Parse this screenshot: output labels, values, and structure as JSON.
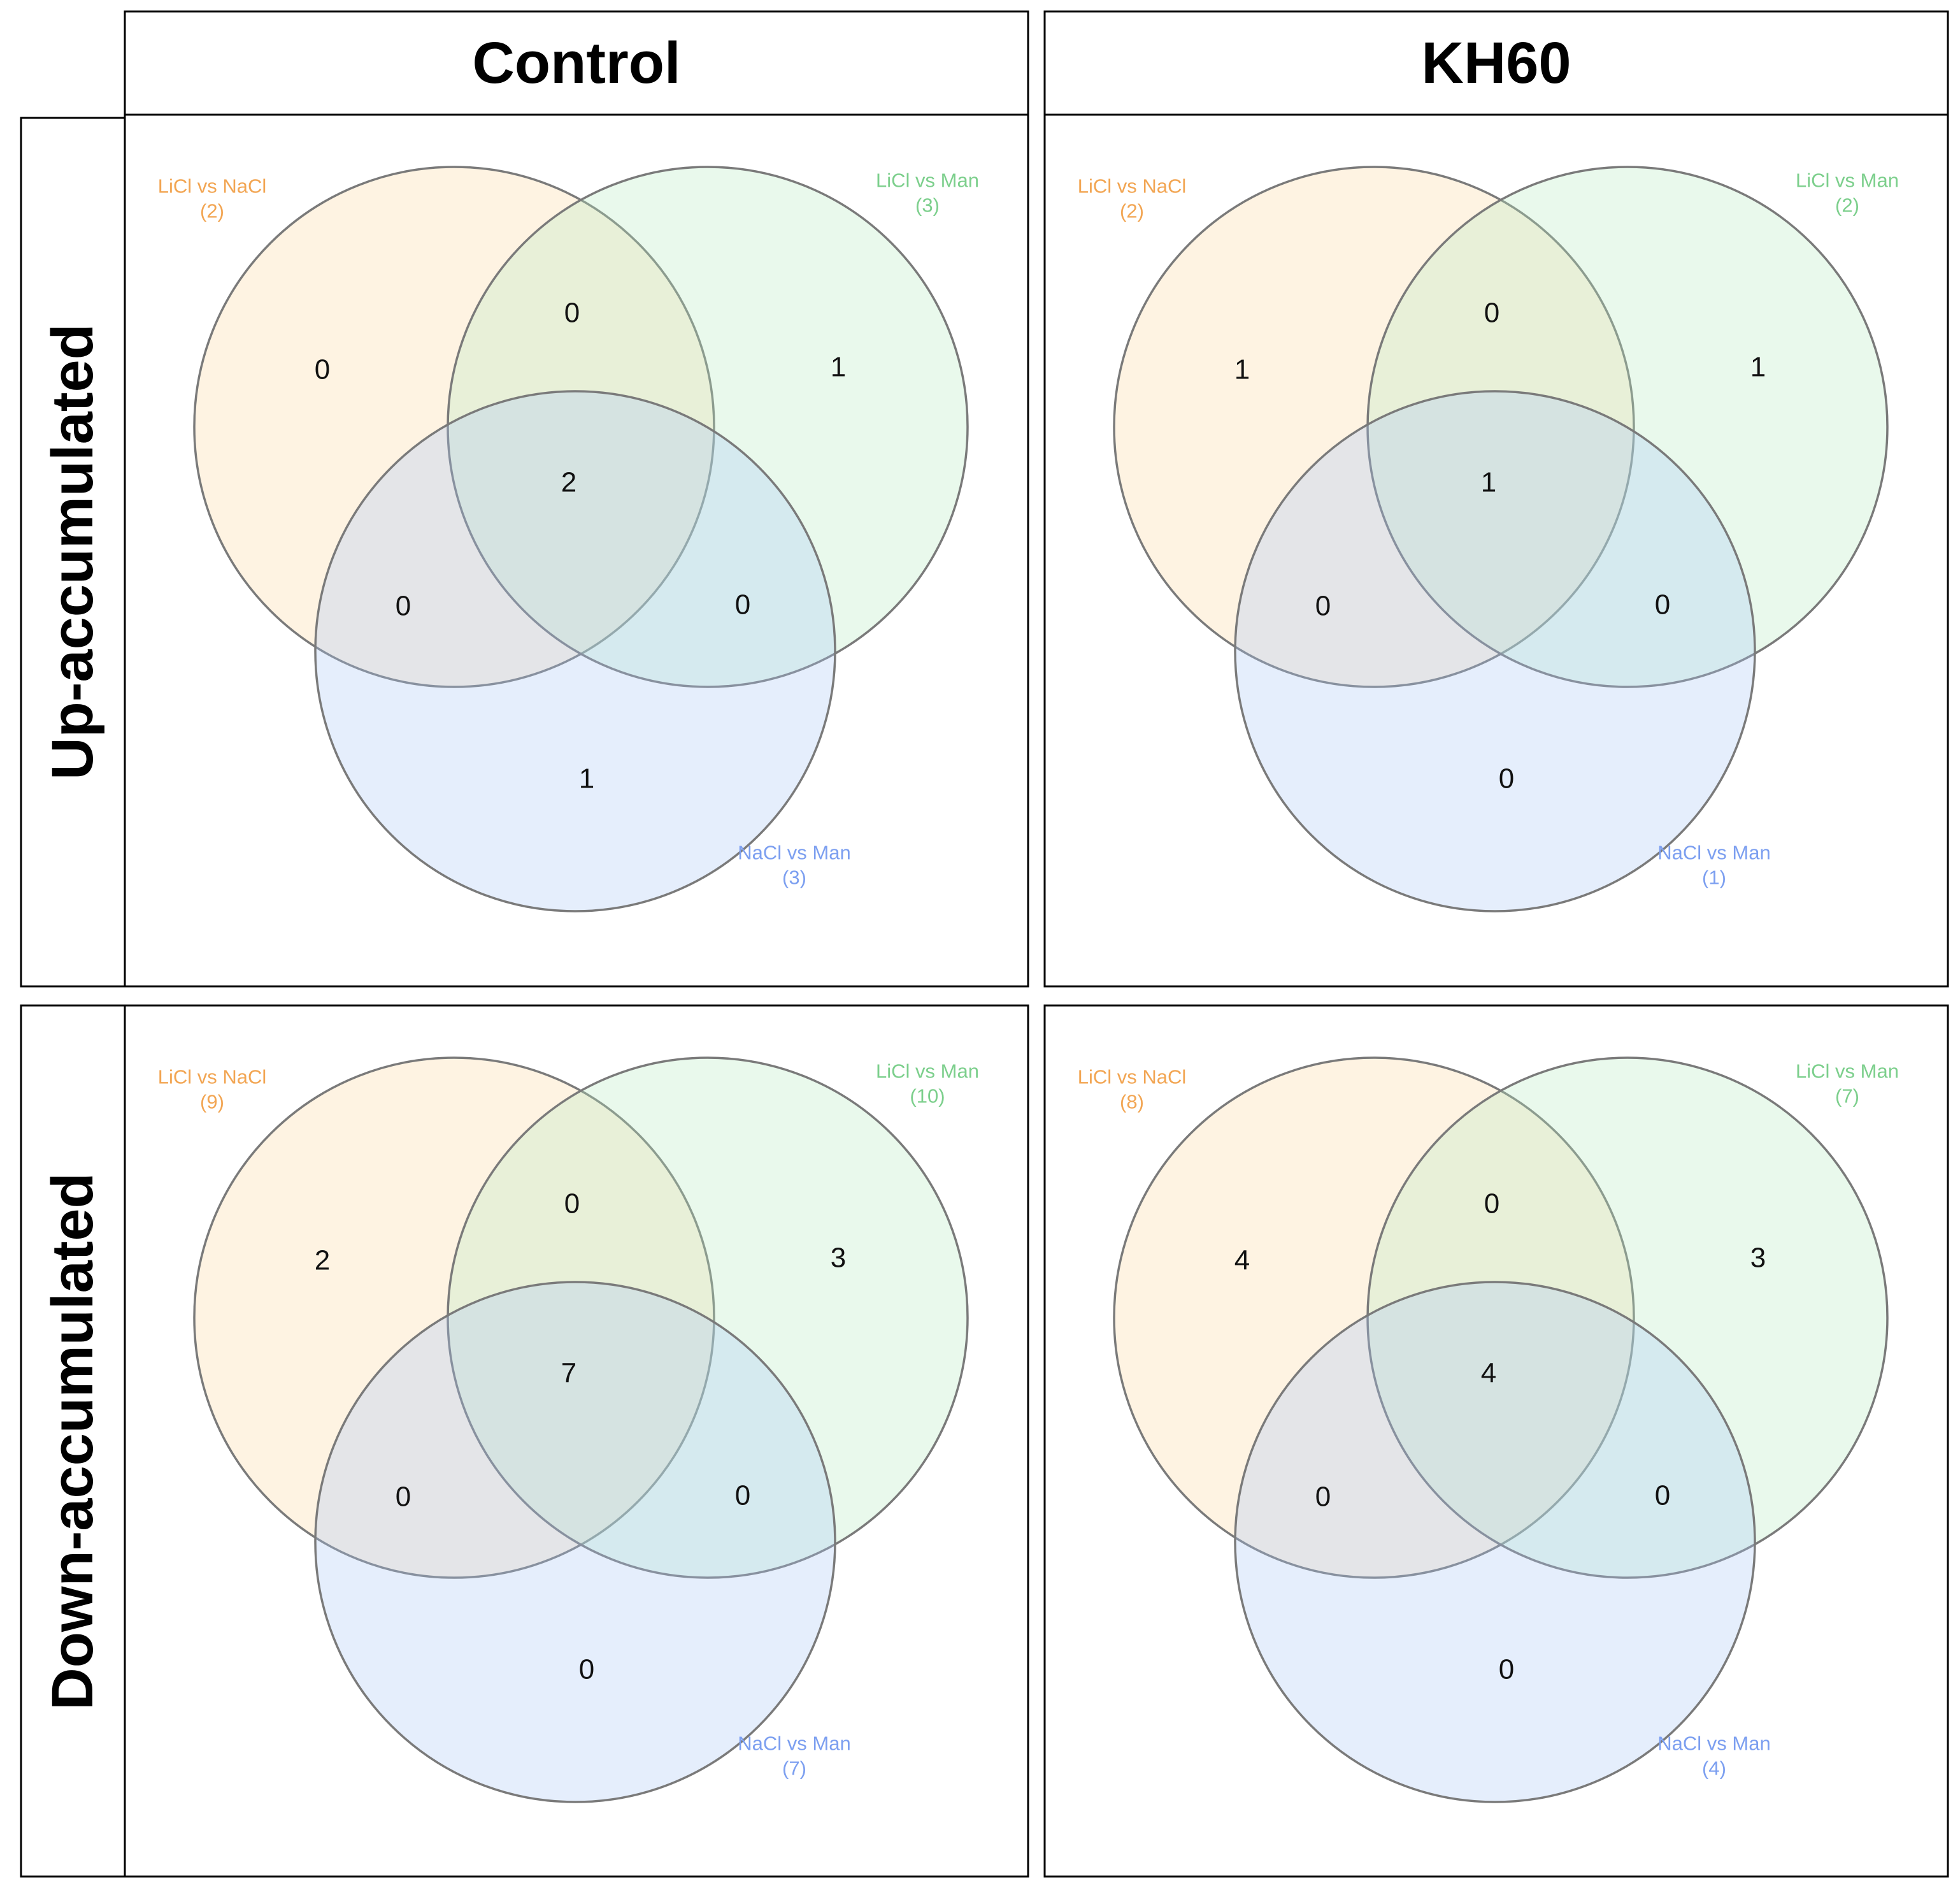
{
  "columns": [
    "Control",
    "KH60"
  ],
  "rows": [
    "Up-accumulated",
    "Down-accumulated"
  ],
  "colors": {
    "set_a": "#fbd7a0",
    "set_b": "#b7ecc0",
    "set_c": "#aac6f5",
    "label_a": "#f2a552",
    "label_b": "#7ccf8c",
    "label_c": "#7c9ff0",
    "frame": "#000000",
    "circle_stroke": "#7a7a7a"
  },
  "set_names": {
    "a": "LiCl vs NaCl",
    "b": "LiCl vs Man",
    "c": "NaCl vs Man"
  },
  "panels": [
    {
      "column": "Control",
      "row": "Up-accumulated",
      "set_totals": {
        "a": "(2)",
        "b": "(3)",
        "c": "(3)"
      },
      "regions": {
        "a_only": "0",
        "b_only": "1",
        "c_only": "1",
        "ab": "0",
        "ac": "0",
        "bc": "0",
        "abc": "2"
      }
    },
    {
      "column": "KH60",
      "row": "Up-accumulated",
      "set_totals": {
        "a": "(2)",
        "b": "(2)",
        "c": "(1)"
      },
      "regions": {
        "a_only": "1",
        "b_only": "1",
        "c_only": "0",
        "ab": "0",
        "ac": "0",
        "bc": "0",
        "abc": "1"
      }
    },
    {
      "column": "Control",
      "row": "Down-accumulated",
      "set_totals": {
        "a": "(9)",
        "b": "(10)",
        "c": "(7)"
      },
      "regions": {
        "a_only": "2",
        "b_only": "3",
        "c_only": "0",
        "ab": "0",
        "ac": "0",
        "bc": "0",
        "abc": "7"
      }
    },
    {
      "column": "KH60",
      "row": "Down-accumulated",
      "set_totals": {
        "a": "(8)",
        "b": "(7)",
        "c": "(4)"
      },
      "regions": {
        "a_only": "4",
        "b_only": "3",
        "c_only": "0",
        "ab": "0",
        "ac": "0",
        "bc": "0",
        "abc": "4"
      }
    }
  ]
}
